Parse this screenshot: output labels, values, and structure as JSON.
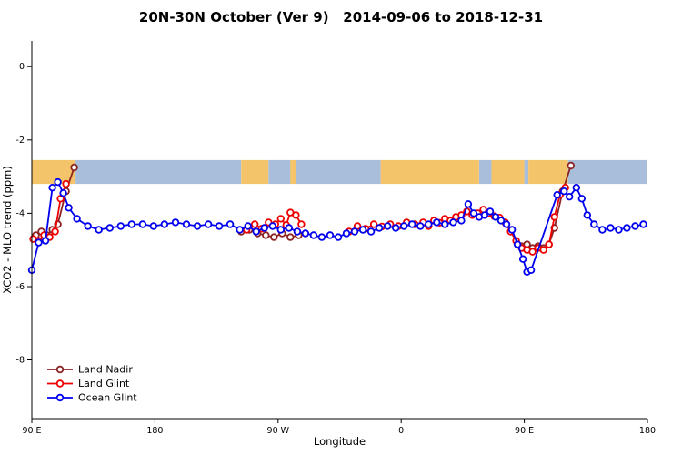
{
  "title": "20N-30N October (Ver 9)   2014-09-06 to 2018-12-31",
  "chart_data": {
    "type": "line",
    "title": "20N-30N October (Ver 9)   2014-09-06 to 2018-12-31",
    "xlabel": "Longitude",
    "ylabel": "XCO2 - MLO trend (ppm)",
    "xlim": [
      90,
      540
    ],
    "ylim": [
      -9.6,
      0.7
    ],
    "grid": false,
    "x_ticks": [
      {
        "value": 90,
        "label": "90 E"
      },
      {
        "value": 180,
        "label": "180"
      },
      {
        "value": 270,
        "label": "90 W"
      },
      {
        "value": 360,
        "label": "0"
      },
      {
        "value": 450,
        "label": "90 E"
      },
      {
        "value": 540,
        "label": "180"
      }
    ],
    "y_ticks": [
      {
        "value": 0,
        "label": "0"
      },
      {
        "value": -2,
        "label": "-2"
      },
      {
        "value": -4,
        "label": "-4"
      },
      {
        "value": -6,
        "label": "-6"
      },
      {
        "value": -8,
        "label": "-8"
      }
    ],
    "legend": {
      "position": "bottom-left",
      "entries": [
        "Land Nadir",
        "Land Glint",
        "Ocean Glint"
      ]
    },
    "map_band": {
      "y_range": [
        -2.55,
        -3.2
      ],
      "ocean_color": "#A9BEDB",
      "land_color": "#F4C46A",
      "segments": [
        {
          "from": 90,
          "to": 122,
          "surface": "land"
        },
        {
          "from": 122,
          "to": 243,
          "surface": "ocean"
        },
        {
          "from": 243,
          "to": 263,
          "surface": "land"
        },
        {
          "from": 263,
          "to": 279,
          "surface": "ocean"
        },
        {
          "from": 279,
          "to": 283,
          "surface": "land"
        },
        {
          "from": 283,
          "to": 345,
          "surface": "ocean"
        },
        {
          "from": 345,
          "to": 417,
          "surface": "land"
        },
        {
          "from": 417,
          "to": 426,
          "surface": "ocean"
        },
        {
          "from": 426,
          "to": 450,
          "surface": "land"
        },
        {
          "from": 450,
          "to": 453,
          "surface": "ocean"
        },
        {
          "from": 453,
          "to": 482,
          "surface": "land"
        },
        {
          "from": 482,
          "to": 540,
          "surface": "ocean"
        }
      ]
    },
    "series": [
      {
        "name": "Land Nadir",
        "color": "#8B2323",
        "segments": [
          [
            [
              93,
              -4.6
            ],
            [
              97,
              -4.5
            ],
            [
              101,
              -4.6
            ],
            [
              105,
              -4.45
            ],
            [
              109,
              -4.3
            ],
            [
              115,
              -3.4
            ],
            [
              121,
              -2.75
            ]
          ],
          [
            [
              243,
              -4.5
            ],
            [
              249,
              -4.45
            ],
            [
              255,
              -4.55
            ],
            [
              261,
              -4.6
            ],
            [
              267,
              -4.65
            ],
            [
              273,
              -4.55
            ],
            [
              279,
              -4.65
            ],
            [
              285,
              -4.6
            ]
          ],
          [
            [
              448,
              -4.9
            ],
            [
              452,
              -4.85
            ],
            [
              456,
              -4.95
            ],
            [
              460,
              -4.9
            ],
            [
              464,
              -4.95
            ],
            [
              468,
              -4.85
            ],
            [
              472,
              -4.4
            ],
            [
              478,
              -3.4
            ],
            [
              484,
              -2.7
            ]
          ]
        ]
      },
      {
        "name": "Land Glint",
        "color": "#EE0000",
        "segments": [
          [
            [
              91,
              -4.7
            ],
            [
              95,
              -4.75
            ],
            [
              99,
              -4.6
            ],
            [
              103,
              -4.65
            ],
            [
              107,
              -4.5
            ],
            [
              111,
              -3.6
            ],
            [
              115,
              -3.2
            ]
          ],
          [
            [
              247,
              -4.45
            ],
            [
              253,
              -4.3
            ],
            [
              258,
              -4.42
            ],
            [
              263,
              -4.25
            ],
            [
              268,
              -4.3
            ],
            [
              272,
              -4.15
            ],
            [
              276,
              -4.32
            ],
            [
              279,
              -3.98
            ],
            [
              283,
              -4.05
            ],
            [
              287,
              -4.3
            ]
          ],
          [
            [
              322,
              -4.5
            ],
            [
              328,
              -4.35
            ],
            [
              334,
              -4.42
            ],
            [
              340,
              -4.3
            ],
            [
              346,
              -4.36
            ],
            [
              352,
              -4.3
            ],
            [
              358,
              -4.35
            ],
            [
              364,
              -4.25
            ],
            [
              370,
              -4.3
            ],
            [
              376,
              -4.25
            ],
            [
              380,
              -4.35
            ],
            [
              384,
              -4.2
            ],
            [
              388,
              -4.26
            ],
            [
              392,
              -4.15
            ],
            [
              396,
              -4.2
            ],
            [
              400,
              -4.1
            ],
            [
              404,
              -4.05
            ],
            [
              408,
              -3.95
            ],
            [
              412,
              -4.05
            ],
            [
              416,
              -4.0
            ],
            [
              420,
              -3.9
            ],
            [
              424,
              -4.0
            ],
            [
              428,
              -4.08
            ],
            [
              432,
              -4.12
            ],
            [
              436,
              -4.25
            ],
            [
              440,
              -4.5
            ],
            [
              444,
              -4.75
            ],
            [
              448,
              -4.95
            ],
            [
              452,
              -5.0
            ],
            [
              456,
              -5.05
            ],
            [
              460,
              -4.95
            ],
            [
              464,
              -5.0
            ],
            [
              468,
              -4.85
            ],
            [
              472,
              -4.1
            ],
            [
              476,
              -3.5
            ],
            [
              480,
              -3.3
            ]
          ]
        ]
      },
      {
        "name": "Ocean Glint",
        "color": "#0000EE",
        "segments": [
          [
            [
              90,
              -5.55
            ],
            [
              95,
              -4.8
            ],
            [
              100,
              -4.75
            ],
            [
              105,
              -3.3
            ],
            [
              109,
              -3.15
            ],
            [
              113,
              -3.45
            ],
            [
              117,
              -3.85
            ],
            [
              123,
              -4.15
            ],
            [
              131,
              -4.35
            ],
            [
              139,
              -4.45
            ],
            [
              147,
              -4.4
            ],
            [
              155,
              -4.35
            ],
            [
              163,
              -4.3
            ],
            [
              171,
              -4.3
            ],
            [
              179,
              -4.35
            ],
            [
              187,
              -4.3
            ],
            [
              195,
              -4.25
            ],
            [
              203,
              -4.3
            ],
            [
              211,
              -4.35
            ],
            [
              219,
              -4.3
            ],
            [
              227,
              -4.35
            ],
            [
              235,
              -4.3
            ],
            [
              242,
              -4.45
            ],
            [
              248,
              -4.35
            ],
            [
              254,
              -4.5
            ],
            [
              260,
              -4.4
            ],
            [
              266,
              -4.35
            ],
            [
              272,
              -4.45
            ],
            [
              278,
              -4.4
            ],
            [
              284,
              -4.5
            ],
            [
              290,
              -4.55
            ],
            [
              296,
              -4.6
            ],
            [
              302,
              -4.65
            ],
            [
              308,
              -4.6
            ],
            [
              314,
              -4.65
            ],
            [
              320,
              -4.55
            ],
            [
              326,
              -4.5
            ],
            [
              332,
              -4.45
            ],
            [
              338,
              -4.5
            ],
            [
              344,
              -4.4
            ],
            [
              350,
              -4.35
            ],
            [
              356,
              -4.4
            ],
            [
              362,
              -4.35
            ],
            [
              368,
              -4.3
            ],
            [
              374,
              -4.35
            ],
            [
              380,
              -4.3
            ],
            [
              386,
              -4.25
            ],
            [
              392,
              -4.3
            ],
            [
              398,
              -4.25
            ],
            [
              404,
              -4.2
            ],
            [
              409,
              -3.75
            ],
            [
              413,
              -4.0
            ],
            [
              417,
              -4.1
            ],
            [
              421,
              -4.05
            ],
            [
              425,
              -3.95
            ],
            [
              429,
              -4.1
            ],
            [
              433,
              -4.2
            ],
            [
              437,
              -4.3
            ],
            [
              441,
              -4.45
            ],
            [
              445,
              -4.85
            ],
            [
              449,
              -5.25
            ],
            [
              452,
              -5.6
            ],
            [
              455,
              -5.55
            ],
            [
              474,
              -3.5
            ],
            [
              479,
              -3.4
            ],
            [
              483,
              -3.55
            ],
            [
              488,
              -3.3
            ],
            [
              492,
              -3.6
            ],
            [
              496,
              -4.05
            ],
            [
              501,
              -4.3
            ],
            [
              507,
              -4.45
            ],
            [
              513,
              -4.4
            ],
            [
              519,
              -4.45
            ],
            [
              525,
              -4.4
            ],
            [
              531,
              -4.35
            ],
            [
              537,
              -4.3
            ]
          ]
        ]
      }
    ]
  }
}
